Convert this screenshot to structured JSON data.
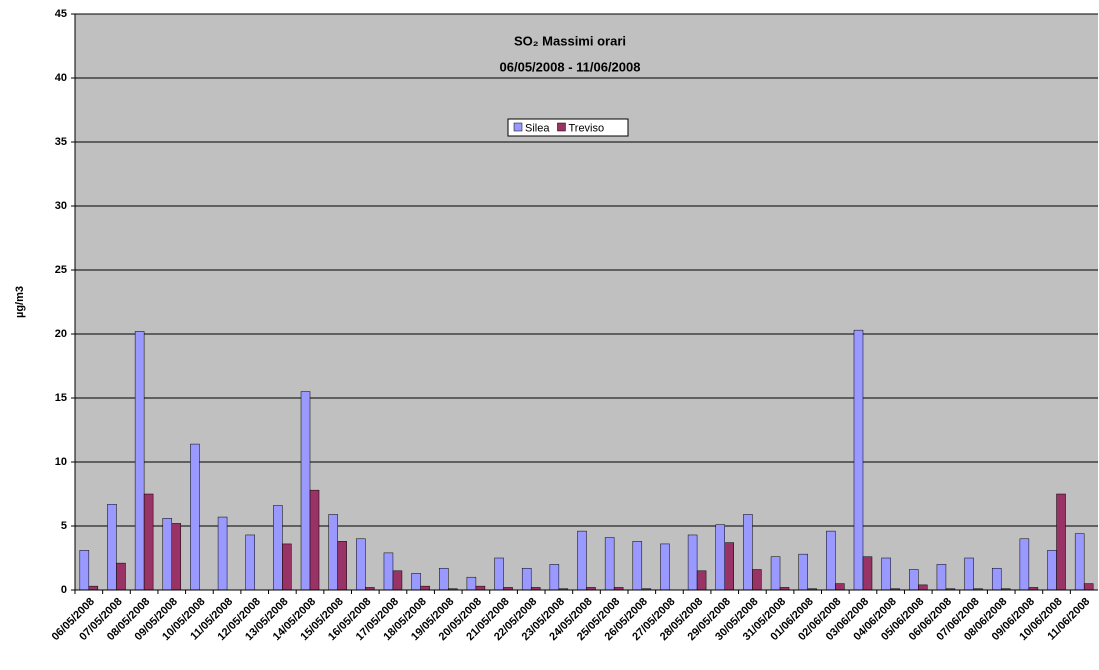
{
  "chart_data": {
    "type": "bar",
    "title": "SO₂ Massimi orari",
    "subtitle": "06/05/2008 - 11/06/2008",
    "y_label": "µg/m3",
    "categories": [
      "06/05/2008",
      "07/05/2008",
      "08/05/2008",
      "09/05/2008",
      "10/05/2008",
      "11/05/2008",
      "12/05/2008",
      "13/05/2008",
      "14/05/2008",
      "15/05/2008",
      "16/05/2008",
      "17/05/2008",
      "18/05/2008",
      "19/05/2008",
      "20/05/2008",
      "21/05/2008",
      "22/05/2008",
      "23/05/2008",
      "24/05/2008",
      "25/05/2008",
      "26/05/2008",
      "27/05/2008",
      "28/05/2008",
      "29/05/2008",
      "30/05/2008",
      "31/05/2008",
      "01/06/2008",
      "02/06/2008",
      "03/06/2008",
      "04/06/2008",
      "05/06/2008",
      "06/06/2008",
      "07/06/2008",
      "08/06/2008",
      "09/06/2008",
      "10/06/2008",
      "11/06/2008"
    ],
    "series": [
      {
        "name": "Silea",
        "color": "#9999ff",
        "values": [
          3.1,
          6.7,
          20.2,
          5.6,
          11.4,
          5.7,
          4.3,
          6.6,
          15.5,
          5.9,
          4.0,
          2.9,
          1.3,
          1.7,
          1.0,
          2.5,
          1.7,
          2.0,
          4.6,
          4.1,
          3.8,
          3.6,
          4.3,
          5.1,
          5.9,
          2.6,
          2.8,
          4.6,
          20.3,
          2.5,
          1.6,
          2.0,
          2.5,
          1.7,
          4.0,
          3.1,
          4.4
        ]
      },
      {
        "name": "Treviso",
        "color": "#993366",
        "values": [
          0.3,
          2.1,
          7.5,
          5.2,
          0,
          0,
          0,
          3.6,
          7.8,
          3.8,
          0.2,
          1.5,
          0.3,
          0.1,
          0.3,
          0.2,
          0.2,
          0.1,
          0.2,
          0.2,
          0.1,
          0,
          1.5,
          3.7,
          1.6,
          0.2,
          0.1,
          0.5,
          2.6,
          0.1,
          0.4,
          0.1,
          0.1,
          0.1,
          0.2,
          7.5,
          0.5
        ]
      }
    ],
    "ylim": [
      0,
      45
    ],
    "yticks": [
      0,
      5,
      10,
      15,
      20,
      25,
      30,
      35,
      40,
      45
    ],
    "grid": true,
    "legend": "top"
  }
}
